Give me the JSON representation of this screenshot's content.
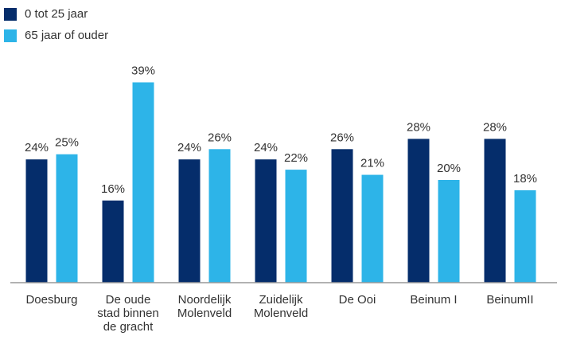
{
  "chart_data": {
    "type": "bar",
    "categories": [
      "Doesburg",
      "De oude stad binnen de gracht",
      "Noordelijk Molenveld",
      "Zuidelijk Molenveld",
      "De Ooi",
      "Beinum I",
      "BeinumII"
    ],
    "series": [
      {
        "name": "0 tot 25 jaar",
        "color": "#052d6b",
        "values": [
          24,
          16,
          24,
          24,
          26,
          28,
          28
        ],
        "value_labels": [
          "24%",
          "16%",
          "24%",
          "24%",
          "26%",
          "28%",
          "28%"
        ]
      },
      {
        "name": "65 jaar of ouder",
        "color": "#2db4e8",
        "values": [
          25,
          39,
          26,
          22,
          21,
          20,
          18
        ],
        "value_labels": [
          "25%",
          "39%",
          "26%",
          "22%",
          "21%",
          "20%",
          "18%"
        ]
      }
    ],
    "ylim": [
      0,
      40
    ],
    "legend": "top-left"
  }
}
